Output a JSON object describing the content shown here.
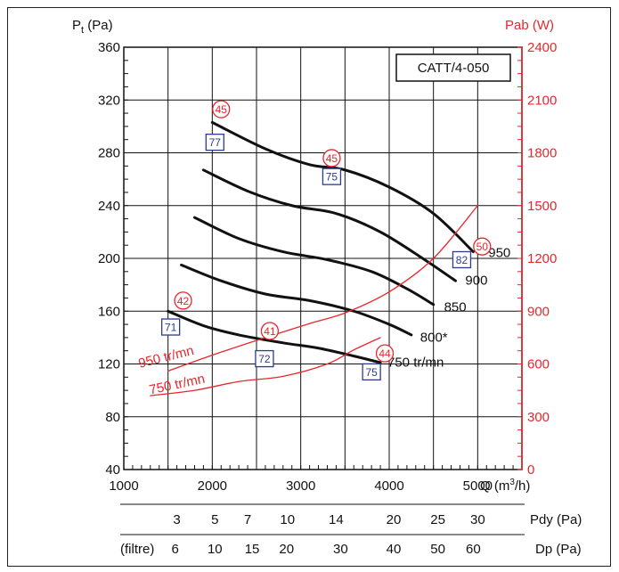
{
  "chart_data": {
    "type": "line",
    "title": "CATT/4-050",
    "xlabel": "Q (m³/h)",
    "ylabel": "Pt (Pa)",
    "ylabel_right": "Pab (W)",
    "xlim": [
      1000,
      5500
    ],
    "ylim": [
      40,
      360
    ],
    "ylim_right": [
      0,
      2400
    ],
    "x_ticks": [
      1000,
      2000,
      3000,
      4000,
      5000
    ],
    "y_ticks": [
      40,
      80,
      120,
      160,
      200,
      240,
      280,
      320,
      360
    ],
    "y_ticks_right": [
      0,
      300,
      600,
      900,
      1200,
      1500,
      1800,
      2100,
      2400
    ],
    "grid": true,
    "series": [
      {
        "name": "950",
        "axis": "left",
        "color": "#111111",
        "x": [
          2000,
          2600,
          3100,
          3500,
          4000,
          4500,
          4950
        ],
        "y": [
          303,
          283,
          271,
          267,
          254,
          234,
          205
        ]
      },
      {
        "name": "900",
        "axis": "left",
        "color": "#111111",
        "x": [
          1900,
          2400,
          2900,
          3400,
          3900,
          4400,
          4750
        ],
        "y": [
          267,
          251,
          240,
          234,
          220,
          199,
          183
        ]
      },
      {
        "name": "850",
        "axis": "left",
        "color": "#111111",
        "x": [
          1800,
          2300,
          2800,
          3300,
          3800,
          4200,
          4500
        ],
        "y": [
          231,
          215,
          205,
          199,
          190,
          177,
          165
        ]
      },
      {
        "name": "800*",
        "axis": "left",
        "color": "#111111",
        "x": [
          1650,
          2100,
          2600,
          3100,
          3600,
          4000,
          4250
        ],
        "y": [
          195,
          183,
          173,
          168,
          160,
          150,
          142
        ]
      },
      {
        "name": "750 tr/mn",
        "axis": "left",
        "color": "#111111",
        "x": [
          1500,
          1900,
          2300,
          2800,
          3200,
          3600,
          3900
        ],
        "y": [
          160,
          149,
          142,
          136,
          132,
          126,
          121
        ]
      },
      {
        "name": "950 tr/mn",
        "axis": "right",
        "color": "#e8262b",
        "x": [
          1500,
          2000,
          2600,
          3100,
          3500,
          4000,
          4500,
          5000
        ],
        "y": [
          560,
          650,
          750,
          830,
          890,
          1010,
          1200,
          1500
        ]
      },
      {
        "name": "750 tr/mn",
        "axis": "right",
        "color": "#e8262b",
        "x": [
          1300,
          1800,
          2300,
          2800,
          3300,
          3600,
          3900
        ],
        "y": [
          420,
          450,
          500,
          530,
          600,
          680,
          750
        ]
      }
    ],
    "series_labels": [
      {
        "text": "950",
        "x": 5120,
        "y": 201,
        "color": "#111111"
      },
      {
        "text": "900",
        "x": 4860,
        "y": 180,
        "color": "#111111"
      },
      {
        "text": "850",
        "x": 4620,
        "y": 160,
        "color": "#111111"
      },
      {
        "text": "800*",
        "x": 4350,
        "y": 137,
        "color": "#111111"
      },
      {
        "text": "750 tr/mn",
        "x": 3980,
        "y": 118,
        "color": "#111111"
      },
      {
        "text": "950 tr/mn",
        "x": 1180,
        "y": 117,
        "color": "#e8262b",
        "angle": -14
      },
      {
        "text": "750 tr/mn",
        "x": 1300,
        "y": 97,
        "color": "#e8262b",
        "angle": -12
      }
    ],
    "efficiency_labels_circle": [
      {
        "value": "45",
        "x": 2100,
        "y": 313
      },
      {
        "value": "45",
        "x": 3350,
        "y": 276
      },
      {
        "value": "50",
        "x": 5050,
        "y": 209
      },
      {
        "value": "42",
        "x": 1670,
        "y": 168
      },
      {
        "value": "41",
        "x": 2650,
        "y": 145
      },
      {
        "value": "44",
        "x": 3950,
        "y": 128
      }
    ],
    "noise_labels_box": [
      {
        "value": "77",
        "x": 2030,
        "y": 288
      },
      {
        "value": "75",
        "x": 3350,
        "y": 262
      },
      {
        "value": "82",
        "x": 4820,
        "y": 199
      },
      {
        "value": "71",
        "x": 1530,
        "y": 148
      },
      {
        "value": "72",
        "x": 2590,
        "y": 124
      },
      {
        "value": "75",
        "x": 3800,
        "y": 114
      }
    ],
    "secondary_scales": [
      {
        "label": "Pdy (Pa)",
        "ticks": [
          {
            "value": "3",
            "x": 1600
          },
          {
            "value": "5",
            "x": 2030
          },
          {
            "value": "7",
            "x": 2400
          },
          {
            "value": "10",
            "x": 2850
          },
          {
            "value": "14",
            "x": 3400
          },
          {
            "value": "20",
            "x": 4050
          },
          {
            "value": "25",
            "x": 4550
          },
          {
            "value": "30",
            "x": 5000
          }
        ]
      },
      {
        "label": "Dp (Pa)",
        "prefix": "(filtre)",
        "ticks": [
          {
            "value": "6",
            "x": 1580
          },
          {
            "value": "10",
            "x": 2030
          },
          {
            "value": "15",
            "x": 2450
          },
          {
            "value": "20",
            "x": 2840
          },
          {
            "value": "30",
            "x": 3450
          },
          {
            "value": "40",
            "x": 4050
          },
          {
            "value": "50",
            "x": 4550
          },
          {
            "value": "60",
            "x": 4950
          }
        ]
      }
    ]
  },
  "texts": {
    "y_left_label": "P",
    "y_left_sub": "t",
    "y_left_unit": " (Pa)",
    "y_right_label": "Pab (W)",
    "x_label": "Q (m",
    "x_label_sup": "3",
    "x_label_end": "/h)",
    "title": "CATT/4-050",
    "pdy_label": "Pdy (Pa)",
    "dp_label": "Dp (Pa)",
    "filtre": "(filtre)"
  },
  "colors": {
    "red": "#e8262b",
    "blue": "#2a3d8f",
    "black": "#111111"
  }
}
